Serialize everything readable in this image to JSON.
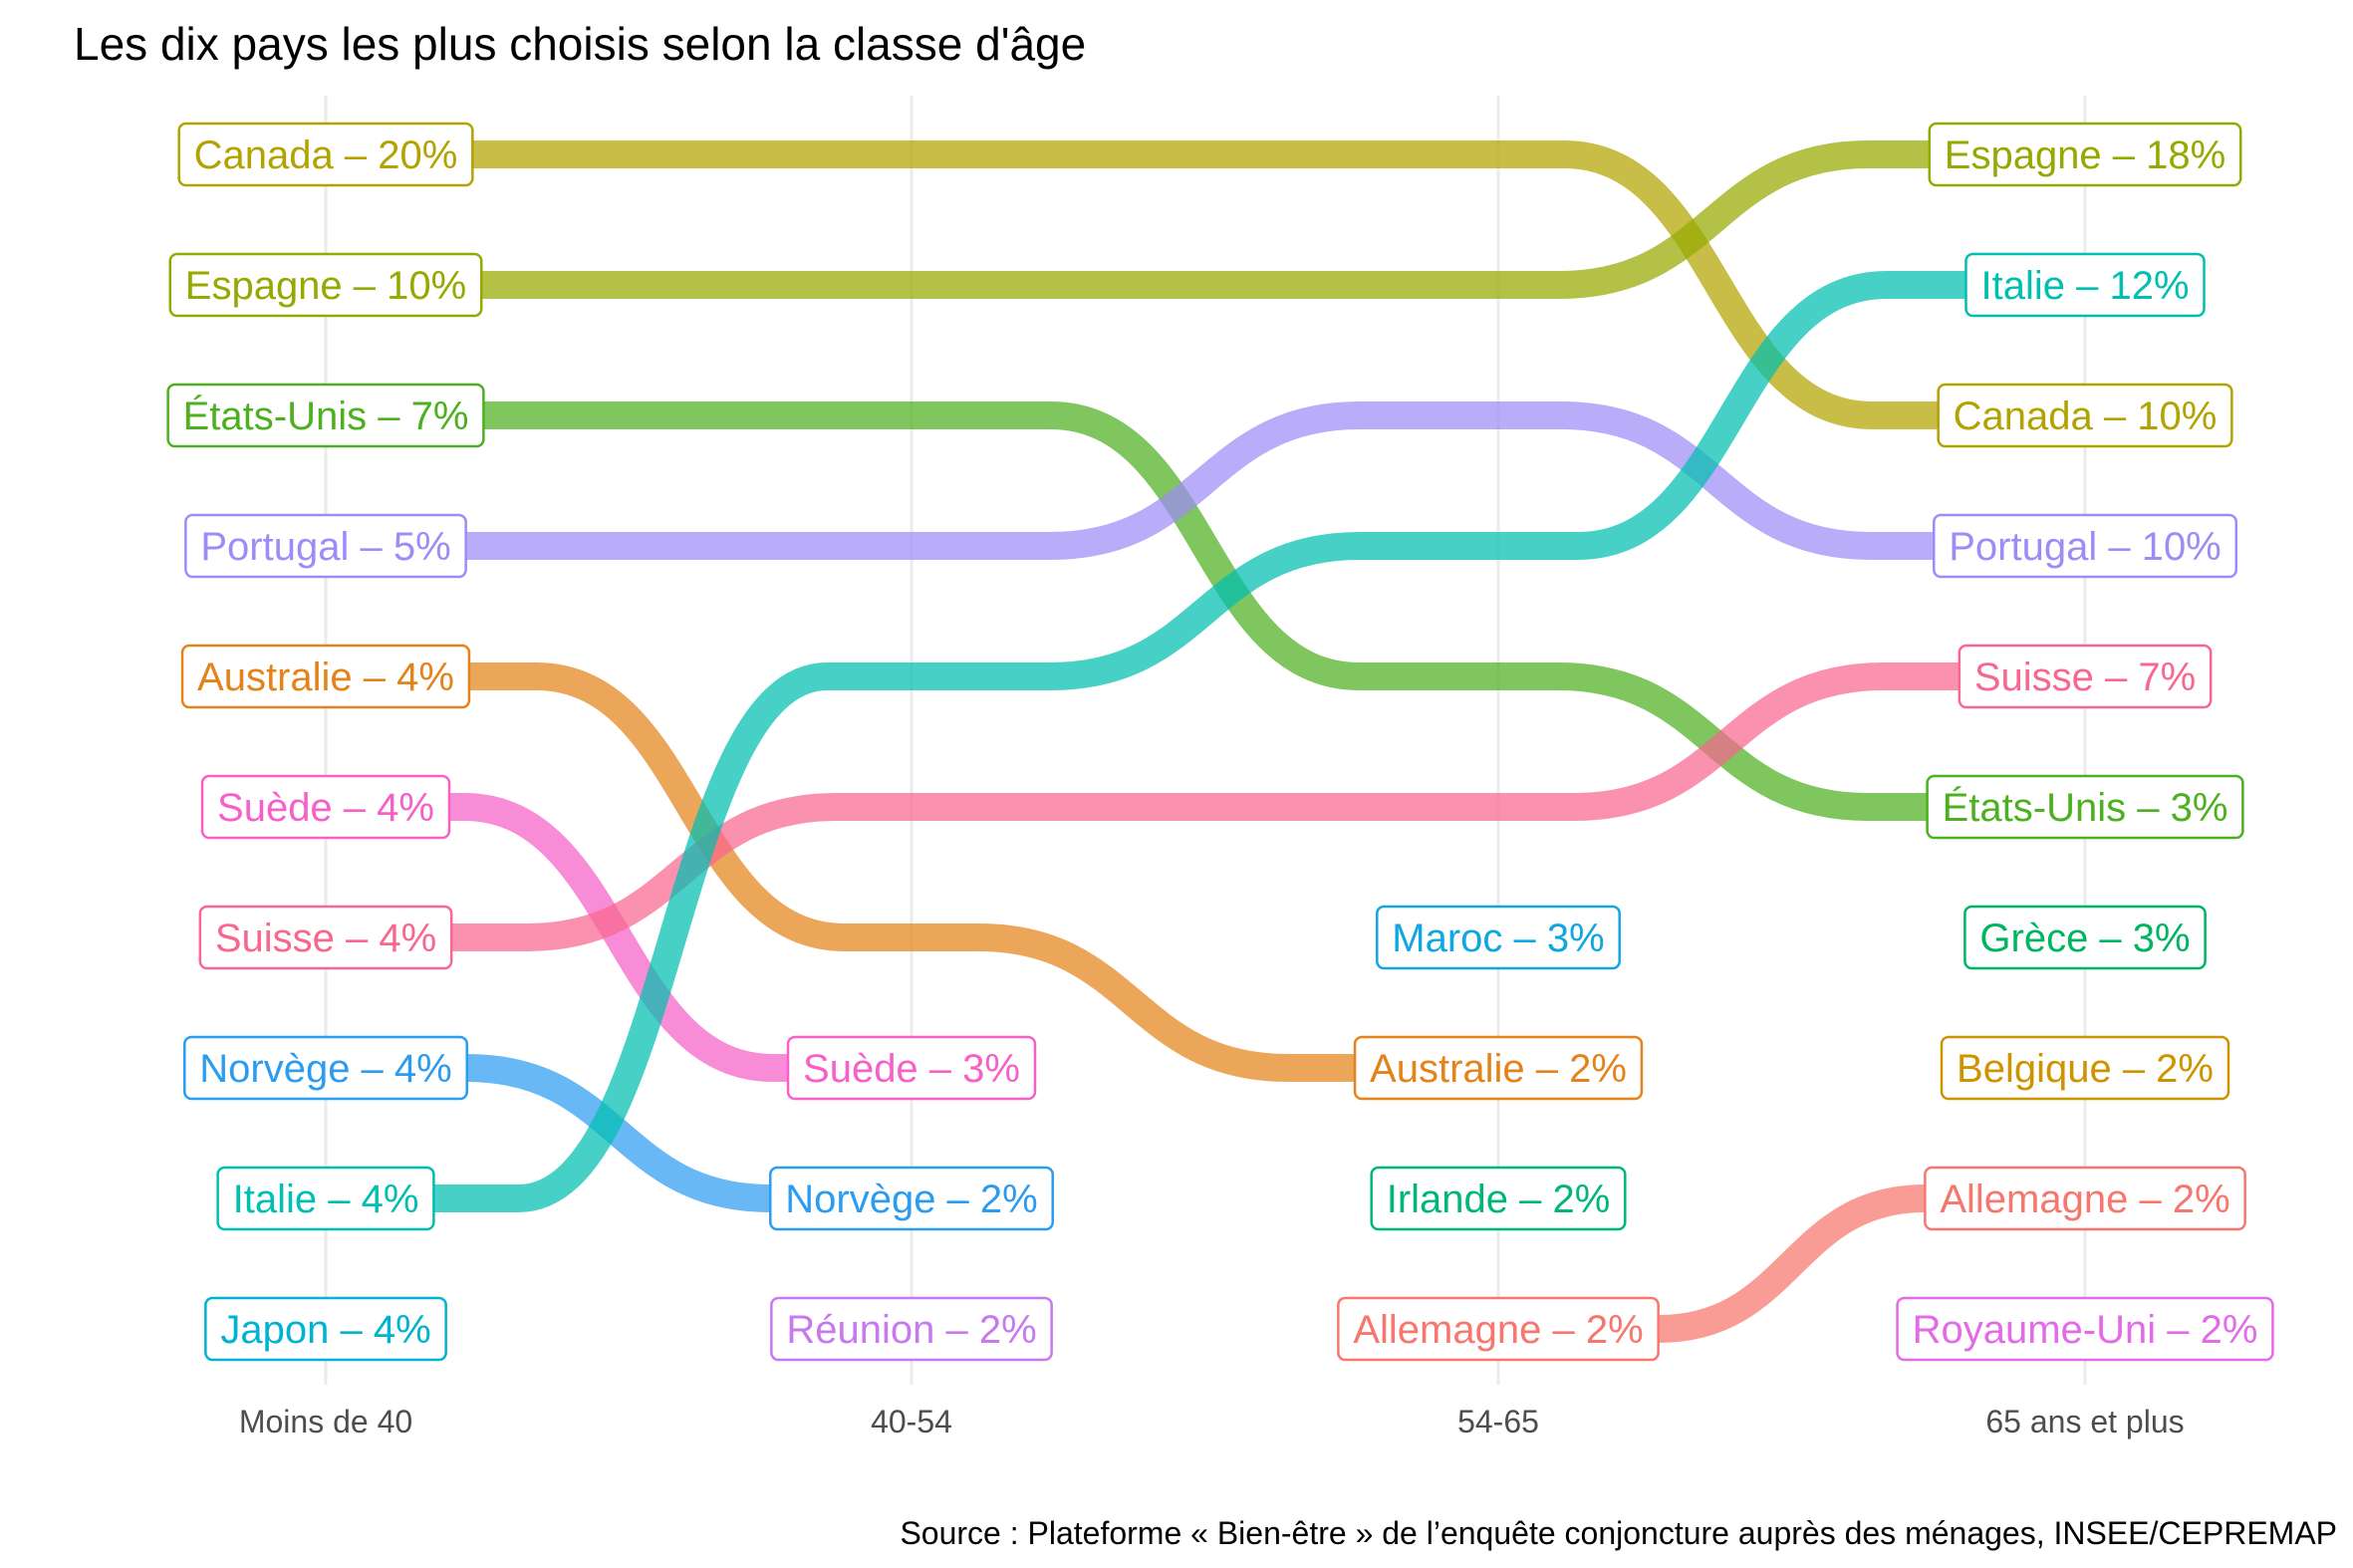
{
  "chart_data": {
    "type": "bump",
    "title": "Les dix pays les plus choisis selon la classe d'âge",
    "source": "Source : Plateforme « Bien-être » de l’enquête conjoncture auprès des ménages, INSEE/CEPREMAP",
    "categories": [
      "Moins de 40",
      "40-54",
      "54-65",
      "65 ans et plus"
    ],
    "nodes": [
      [
        {
          "label": "Canada – 20%",
          "country": "Canada",
          "value": 20,
          "rank": 1
        },
        {
          "label": "Espagne – 10%",
          "country": "Espagne",
          "value": 10,
          "rank": 2
        },
        {
          "label": "États-Unis – 7%",
          "country": "États-Unis",
          "value": 7,
          "rank": 3
        },
        {
          "label": "Portugal – 5%",
          "country": "Portugal",
          "value": 5,
          "rank": 4
        },
        {
          "label": "Australie – 4%",
          "country": "Australie",
          "value": 4,
          "rank": 5
        },
        {
          "label": "Suède – 4%",
          "country": "Suède",
          "value": 4,
          "rank": 6
        },
        {
          "label": "Suisse – 4%",
          "country": "Suisse",
          "value": 4,
          "rank": 7
        },
        {
          "label": "Norvège – 4%",
          "country": "Norvège",
          "value": 4,
          "rank": 8
        },
        {
          "label": "Italie – 4%",
          "country": "Italie",
          "value": 4,
          "rank": 9
        },
        {
          "label": "Japon – 4%",
          "country": "Japon",
          "value": 4,
          "rank": 10
        }
      ],
      [
        {
          "label": "Suède – 3%",
          "country": "Suède",
          "value": 3,
          "rank": 8
        },
        {
          "label": "Norvège – 2%",
          "country": "Norvège",
          "value": 2,
          "rank": 9
        },
        {
          "label": "Réunion – 2%",
          "country": "Réunion",
          "value": 2,
          "rank": 10
        }
      ],
      [
        {
          "label": "Maroc – 3%",
          "country": "Maroc",
          "value": 3,
          "rank": 7
        },
        {
          "label": "Australie – 2%",
          "country": "Australie",
          "value": 2,
          "rank": 8
        },
        {
          "label": "Irlande – 2%",
          "country": "Irlande",
          "value": 2,
          "rank": 9
        },
        {
          "label": "Allemagne – 2%",
          "country": "Allemagne",
          "value": 2,
          "rank": 10
        }
      ],
      [
        {
          "label": "Espagne – 18%",
          "country": "Espagne",
          "value": 18,
          "rank": 1
        },
        {
          "label": "Italie – 12%",
          "country": "Italie",
          "value": 12,
          "rank": 2
        },
        {
          "label": "Canada – 10%",
          "country": "Canada",
          "value": 10,
          "rank": 3
        },
        {
          "label": "Portugal – 10%",
          "country": "Portugal",
          "value": 10,
          "rank": 4
        },
        {
          "label": "Suisse – 7%",
          "country": "Suisse",
          "value": 7,
          "rank": 5
        },
        {
          "label": "États-Unis – 3%",
          "country": "États-Unis",
          "value": 3,
          "rank": 6
        },
        {
          "label": "Grèce – 3%",
          "country": "Grèce",
          "value": 3,
          "rank": 7
        },
        {
          "label": "Belgique – 2%",
          "country": "Belgique",
          "value": 2,
          "rank": 8
        },
        {
          "label": "Allemagne – 2%",
          "country": "Allemagne",
          "value": 2,
          "rank": 9
        },
        {
          "label": "Royaume-Uni – 2%",
          "country": "Royaume-Uni",
          "value": 2,
          "rank": 10
        }
      ]
    ],
    "series": [
      {
        "name": "Canada",
        "color": "#B2A300",
        "ranks": [
          1,
          1,
          1,
          3
        ]
      },
      {
        "name": "Espagne",
        "color": "#95A900",
        "ranks": [
          2,
          2,
          2,
          1
        ]
      },
      {
        "name": "États-Unis",
        "color": "#4CB01F",
        "ranks": [
          3,
          3,
          5,
          6
        ]
      },
      {
        "name": "Portugal",
        "color": "#9E8CF6",
        "ranks": [
          4,
          4,
          3,
          4
        ]
      },
      {
        "name": "Australie",
        "color": "#E3831A",
        "ranks": [
          5,
          7,
          8,
          null
        ]
      },
      {
        "name": "Suède",
        "color": "#F760C8",
        "ranks": [
          6,
          8,
          null,
          null
        ]
      },
      {
        "name": "Suisse",
        "color": "#F8678F",
        "ranks": [
          7,
          6,
          6,
          5
        ]
      },
      {
        "name": "Norvège",
        "color": "#2C9CF0",
        "ranks": [
          8,
          9,
          null,
          null
        ]
      },
      {
        "name": "Italie",
        "color": "#00BFB0",
        "ranks": [
          9,
          5,
          4,
          2
        ]
      },
      {
        "name": "Japon",
        "color": "#00B3D0",
        "ranks": [
          10,
          null,
          null,
          null
        ]
      },
      {
        "name": "Réunion",
        "color": "#C779F0",
        "ranks": [
          null,
          10,
          null,
          null
        ]
      },
      {
        "name": "Maroc",
        "color": "#10A6E0",
        "ranks": [
          null,
          null,
          7,
          null
        ]
      },
      {
        "name": "Irlande",
        "color": "#00B67B",
        "ranks": [
          null,
          null,
          9,
          null
        ]
      },
      {
        "name": "Allemagne",
        "color": "#F7766D",
        "ranks": [
          null,
          null,
          10,
          9
        ]
      },
      {
        "name": "Grèce",
        "color": "#00B562",
        "ranks": [
          null,
          null,
          null,
          7
        ]
      },
      {
        "name": "Belgique",
        "color": "#CE9400",
        "ranks": [
          null,
          null,
          null,
          8
        ]
      },
      {
        "name": "Royaume-Uni",
        "color": "#E36BE8",
        "ranks": [
          null,
          null,
          null,
          10
        ]
      }
    ],
    "grid": true,
    "legend": "none"
  }
}
